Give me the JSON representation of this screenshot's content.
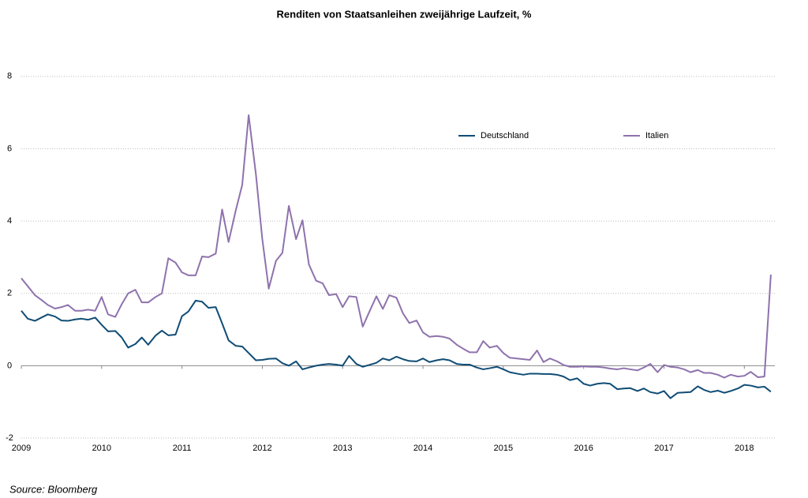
{
  "chart_data": {
    "type": "line",
    "title": "Renditen von Staatsanleihen  zweijährige Laufzeit, %",
    "source": "Source: Bloomberg",
    "legend": "upper right",
    "grid": true,
    "xlim": [
      2009,
      2018.38
    ],
    "xticks": [
      2009,
      2010,
      2011,
      2012,
      2013,
      2014,
      2015,
      2016,
      2017,
      2018
    ],
    "ylim": [
      -2,
      9
    ],
    "yticks": [
      -2,
      0,
      2,
      4,
      6,
      8
    ],
    "x": [
      2009,
      2009.08,
      2009.17,
      2009.25,
      2009.33,
      2009.42,
      2009.5,
      2009.58,
      2009.67,
      2009.75,
      2009.83,
      2009.92,
      2010,
      2010.08,
      2010.17,
      2010.25,
      2010.33,
      2010.42,
      2010.5,
      2010.58,
      2010.67,
      2010.75,
      2010.83,
      2010.92,
      2011,
      2011.08,
      2011.17,
      2011.25,
      2011.33,
      2011.42,
      2011.5,
      2011.58,
      2011.67,
      2011.75,
      2011.83,
      2011.92,
      2012,
      2012.08,
      2012.17,
      2012.25,
      2012.33,
      2012.42,
      2012.5,
      2012.58,
      2012.67,
      2012.75,
      2012.83,
      2012.92,
      2013,
      2013.08,
      2013.17,
      2013.25,
      2013.33,
      2013.42,
      2013.5,
      2013.58,
      2013.67,
      2013.75,
      2013.83,
      2013.92,
      2014,
      2014.08,
      2014.17,
      2014.25,
      2014.33,
      2014.42,
      2014.5,
      2014.58,
      2014.67,
      2014.75,
      2014.83,
      2014.92,
      2015,
      2015.08,
      2015.17,
      2015.25,
      2015.33,
      2015.42,
      2015.5,
      2015.58,
      2015.67,
      2015.75,
      2015.83,
      2015.92,
      2016,
      2016.08,
      2016.17,
      2016.25,
      2016.33,
      2016.42,
      2016.5,
      2016.58,
      2016.67,
      2016.75,
      2016.83,
      2016.92,
      2017,
      2017.08,
      2017.17,
      2017.25,
      2017.33,
      2017.42,
      2017.5,
      2017.58,
      2017.67,
      2017.75,
      2017.83,
      2017.92,
      2018,
      2018.08,
      2018.17,
      2018.25,
      2018.33
    ],
    "series": [
      {
        "name": "Deutschland",
        "color": "#0f4c75",
        "values": [
          1.52,
          1.3,
          1.24,
          1.33,
          1.42,
          1.36,
          1.25,
          1.24,
          1.28,
          1.3,
          1.27,
          1.33,
          1.13,
          0.95,
          0.96,
          0.78,
          0.5,
          0.6,
          0.78,
          0.58,
          0.83,
          0.97,
          0.84,
          0.86,
          1.37,
          1.5,
          1.8,
          1.77,
          1.6,
          1.62,
          1.17,
          0.7,
          0.55,
          0.53,
          0.35,
          0.15,
          0.16,
          0.19,
          0.2,
          0.07,
          0.0,
          0.12,
          -0.1,
          -0.05,
          0.0,
          0.03,
          0.05,
          0.03,
          0.0,
          0.27,
          0.05,
          -0.03,
          0.02,
          0.08,
          0.2,
          0.15,
          0.25,
          0.18,
          0.13,
          0.12,
          0.2,
          0.1,
          0.15,
          0.18,
          0.15,
          0.05,
          0.03,
          0.03,
          -0.05,
          -0.1,
          -0.07,
          -0.03,
          -0.1,
          -0.18,
          -0.22,
          -0.25,
          -0.22,
          -0.22,
          -0.23,
          -0.23,
          -0.25,
          -0.3,
          -0.4,
          -0.35,
          -0.5,
          -0.55,
          -0.5,
          -0.48,
          -0.5,
          -0.65,
          -0.63,
          -0.62,
          -0.7,
          -0.63,
          -0.73,
          -0.77,
          -0.7,
          -0.9,
          -0.75,
          -0.74,
          -0.73,
          -0.57,
          -0.67,
          -0.73,
          -0.69,
          -0.75,
          -0.7,
          -0.63,
          -0.53,
          -0.55,
          -0.6,
          -0.58,
          -0.72
        ]
      },
      {
        "name": "Italien",
        "color": "#8e72ad",
        "values": [
          2.42,
          2.2,
          1.95,
          1.82,
          1.68,
          1.58,
          1.62,
          1.68,
          1.52,
          1.52,
          1.55,
          1.52,
          1.9,
          1.42,
          1.35,
          1.7,
          2.0,
          2.1,
          1.75,
          1.75,
          1.9,
          2.0,
          2.97,
          2.85,
          2.58,
          2.5,
          2.5,
          3.02,
          3.0,
          3.1,
          4.32,
          3.42,
          4.3,
          5.0,
          6.93,
          5.3,
          3.5,
          2.13,
          2.9,
          3.12,
          4.42,
          3.5,
          4.02,
          2.8,
          2.35,
          2.28,
          1.95,
          1.98,
          1.62,
          1.92,
          1.9,
          1.08,
          1.48,
          1.92,
          1.57,
          1.95,
          1.88,
          1.45,
          1.18,
          1.25,
          0.92,
          0.8,
          0.82,
          0.8,
          0.75,
          0.58,
          0.47,
          0.37,
          0.37,
          0.68,
          0.5,
          0.55,
          0.35,
          0.22,
          0.2,
          0.18,
          0.16,
          0.42,
          0.1,
          0.2,
          0.12,
          0.02,
          -0.03,
          -0.03,
          -0.02,
          -0.03,
          -0.03,
          -0.05,
          -0.08,
          -0.1,
          -0.07,
          -0.1,
          -0.13,
          -0.05,
          0.05,
          -0.18,
          0.02,
          -0.03,
          -0.05,
          -0.1,
          -0.18,
          -0.12,
          -0.2,
          -0.2,
          -0.25,
          -0.33,
          -0.25,
          -0.3,
          -0.28,
          -0.17,
          -0.32,
          -0.3,
          2.52
        ]
      }
    ]
  }
}
